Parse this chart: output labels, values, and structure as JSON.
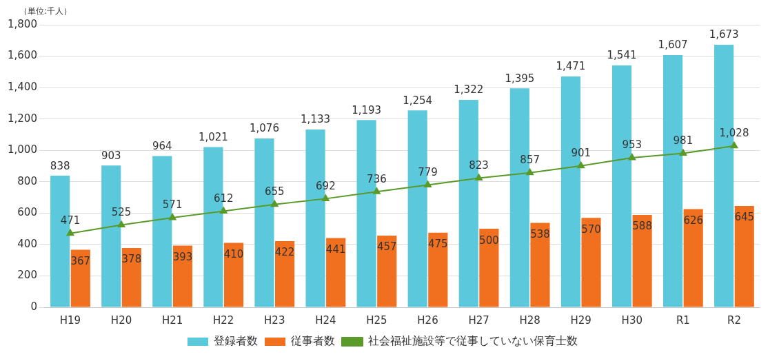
{
  "chart_data": {
    "type": "bar",
    "annotations": [
      "（単位:千人）"
    ],
    "categories": [
      "H19",
      "H20",
      "H21",
      "H22",
      "H23",
      "H24",
      "H25",
      "H26",
      "H27",
      "H28",
      "H29",
      "H30",
      "R1",
      "R2"
    ],
    "series": [
      {
        "name": "登録者数",
        "color": "#5bc8dc",
        "values": [
          838,
          903,
          964,
          1021,
          1076,
          1133,
          1193,
          1254,
          1322,
          1395,
          1471,
          1541,
          1607,
          1673
        ],
        "value_labels": [
          "838",
          "903",
          "964",
          "1,021",
          "1,076",
          "1,133",
          "1,193",
          "1,254",
          "1,322",
          "1,395",
          "1,471",
          "1,541",
          "1,607",
          "1,673"
        ]
      },
      {
        "name": "従事者数",
        "color": "#f07020",
        "values": [
          367,
          378,
          393,
          410,
          422,
          441,
          457,
          475,
          500,
          538,
          570,
          588,
          626,
          645
        ],
        "value_labels": [
          "367",
          "378",
          "393",
          "410",
          "422",
          "441",
          "457",
          "475",
          "500",
          "538",
          "570",
          "588",
          "626",
          "645"
        ]
      },
      {
        "name": "社会福祉施設等で従事していない保育士数",
        "type": "line",
        "color": "#5a9a28",
        "values": [
          471,
          525,
          571,
          612,
          655,
          692,
          736,
          779,
          823,
          857,
          901,
          953,
          981,
          1028
        ],
        "value_labels": [
          "471",
          "525",
          "571",
          "612",
          "655",
          "692",
          "736",
          "779",
          "823",
          "857",
          "901",
          "953",
          "981",
          "1,028"
        ]
      }
    ],
    "ylim": [
      0,
      1800
    ],
    "yticks": [
      0,
      200,
      400,
      600,
      800,
      {
        "value": 1000,
        "label": "1,000"
      },
      {
        "value": 1200,
        "label": "1,200"
      },
      {
        "value": 1400,
        "label": "1,400"
      },
      {
        "value": 1600,
        "label": "1,600"
      },
      {
        "value": 1800,
        "label": "1,800"
      }
    ],
    "grid": "y",
    "legend": "bottom",
    "marker": "triangle"
  }
}
